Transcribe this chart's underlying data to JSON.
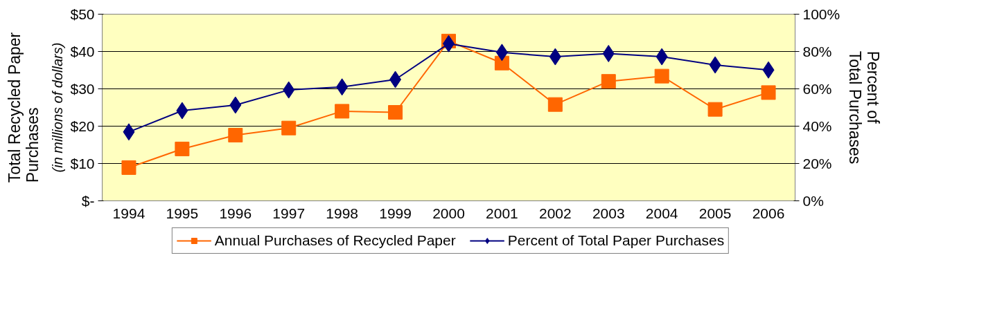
{
  "chart_data": {
    "type": "line",
    "categories": [
      "1994",
      "1995",
      "1996",
      "1997",
      "1998",
      "1999",
      "2000",
      "2001",
      "2002",
      "2003",
      "2004",
      "2005",
      "2006"
    ],
    "ylabel": "Total Recycled Paper Purchases",
    "y2label": "Percent of Total Purchases",
    "annotations": [
      "(in millions of dollars)"
    ],
    "ylim": [
      0,
      50
    ],
    "yticks": [
      {
        "value": 0,
        "label": "$-"
      },
      {
        "value": 10,
        "label": "$10"
      },
      {
        "value": 20,
        "label": "$20"
      },
      {
        "value": 30,
        "label": "$30"
      },
      {
        "value": 40,
        "label": "$40"
      },
      {
        "value": 50,
        "label": "$50"
      }
    ],
    "y2lim": [
      0,
      100
    ],
    "y2ticks": [
      {
        "value": 0,
        "label": "0%"
      },
      {
        "value": 20,
        "label": "20%"
      },
      {
        "value": 40,
        "label": "40%"
      },
      {
        "value": 60,
        "label": "60%"
      },
      {
        "value": 80,
        "label": "80%"
      },
      {
        "value": 100,
        "label": "100%"
      }
    ],
    "grid": "y",
    "legend": "bottom",
    "series": [
      {
        "name": "Annual Purchases of Recycled Paper",
        "color": "#ff6600",
        "marker": "square",
        "values": [
          8.9,
          13.9,
          17.6,
          19.5,
          24,
          23.7,
          42.8,
          36.9,
          25.8,
          32,
          33.4,
          24.5,
          29
        ]
      },
      {
        "name": "Percent of Total Paper Purchases",
        "color": "#000080",
        "marker": "diamond",
        "axis": "y2",
        "values": [
          36.9,
          48.3,
          51.3,
          59.4,
          61,
          65,
          84.2,
          79.5,
          77.2,
          78.9,
          77.2,
          72.8,
          70.1
        ]
      }
    ]
  }
}
